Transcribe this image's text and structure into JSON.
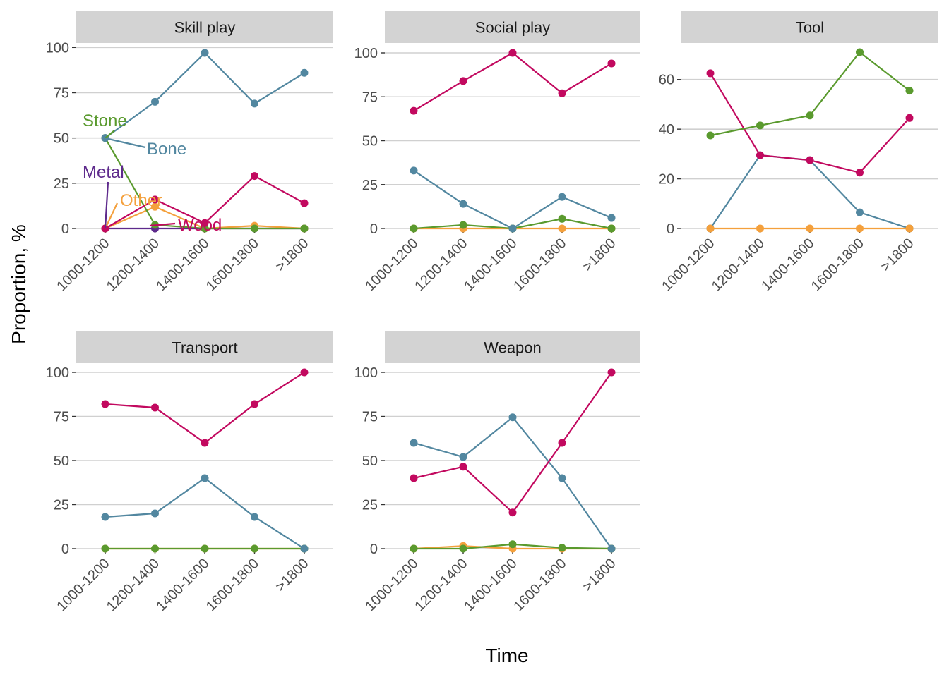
{
  "series_colors": {
    "Bone": "#5287a0",
    "Stone": "#5a9a2e",
    "Metal": "#5e2a8c",
    "Other": "#f4a03c",
    "Wood": "#c2095f"
  },
  "chart_data": {
    "type": "line",
    "facets": true,
    "xlabel": "Time",
    "ylabel": "Proportion, %",
    "categories": [
      "1000-1200",
      "1200-1400",
      "1400-1600",
      "1600-1800",
      ">1800"
    ],
    "grid": true,
    "legend": "direct labels in first panel",
    "panels": [
      {
        "title": "Skill play",
        "ylim": [
          0,
          120
        ],
        "yticks": [
          0,
          25,
          50,
          75,
          100
        ],
        "series": [
          {
            "name": "Metal",
            "values": [
              0,
              0,
              0,
              0,
              0
            ]
          },
          {
            "name": "Other",
            "values": [
              0,
              12,
              0,
              1.5,
              0
            ]
          },
          {
            "name": "Stone",
            "values": [
              50,
              2,
              0,
              0,
              0
            ]
          },
          {
            "name": "Wood",
            "values": [
              0,
              16,
              3,
              29,
              14
            ]
          },
          {
            "name": "Bone",
            "values": [
              50,
              70,
              97,
              69,
              86
            ]
          }
        ]
      },
      {
        "title": "Social play",
        "ylim": [
          0,
          100
        ],
        "yticks": [
          0,
          25,
          50,
          75,
          100
        ],
        "series": [
          {
            "name": "Other",
            "values": [
              0,
              0,
              0,
              0,
              0
            ]
          },
          {
            "name": "Stone",
            "values": [
              0,
              2,
              0,
              5.5,
              0
            ]
          },
          {
            "name": "Bone",
            "values": [
              33,
              14,
              0,
              18,
              6
            ]
          },
          {
            "name": "Wood",
            "values": [
              67,
              84,
              100,
              77,
              94
            ]
          }
        ]
      },
      {
        "title": "Tool",
        "ylim": [
          0,
          71
        ],
        "yticks": [
          0,
          20,
          40,
          60
        ],
        "series": [
          {
            "name": "Bone",
            "values": [
              0,
              29.5,
              27.5,
              6.5,
              0
            ]
          },
          {
            "name": "Wood",
            "values": [
              62.5,
              29.5,
              27.5,
              22.5,
              44.5
            ]
          },
          {
            "name": "Stone",
            "values": [
              37.5,
              41.5,
              45.5,
              71,
              55.5
            ]
          },
          {
            "name": "Other",
            "values": [
              0,
              0,
              0,
              0,
              0
            ]
          }
        ]
      },
      {
        "title": "Transport",
        "ylim": [
          0,
          100
        ],
        "yticks": [
          0,
          25,
          50,
          75,
          100
        ],
        "series": [
          {
            "name": "Other",
            "values": [
              0,
              0,
              0,
              0,
              0
            ]
          },
          {
            "name": "Stone",
            "values": [
              0,
              0,
              0,
              0,
              0
            ]
          },
          {
            "name": "Bone",
            "values": [
              18,
              20,
              40,
              18,
              0
            ]
          },
          {
            "name": "Wood",
            "values": [
              82,
              80,
              60,
              82,
              100
            ]
          }
        ]
      },
      {
        "title": "Weapon",
        "ylim": [
          0,
          100
        ],
        "yticks": [
          0,
          25,
          50,
          75,
          100
        ],
        "series": [
          {
            "name": "Other",
            "values": [
              0,
              1.5,
              0,
              0,
              0
            ]
          },
          {
            "name": "Stone",
            "values": [
              0,
              0,
              2.5,
              0.5,
              0
            ]
          },
          {
            "name": "Bone",
            "values": [
              60,
              52,
              74.5,
              40,
              0
            ]
          },
          {
            "name": "Wood",
            "values": [
              40,
              46.5,
              20.5,
              60,
              100
            ]
          }
        ]
      }
    ],
    "annotations": [
      "Stone",
      "Bone",
      "Metal",
      "Other",
      "Wood"
    ]
  }
}
